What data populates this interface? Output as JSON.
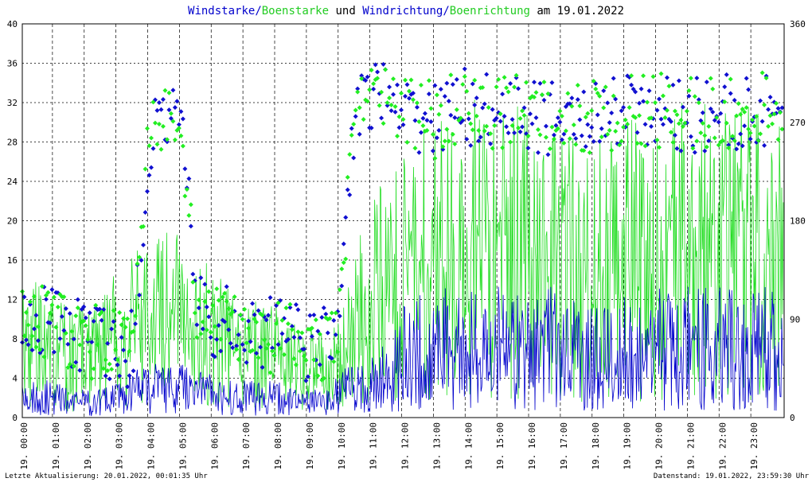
{
  "title": {
    "part1": "Windstarke",
    "sep1": "/",
    "part2": "Boenstarke",
    "mid": " und ",
    "part3": "Windrichtung",
    "sep2": "/",
    "part4": "Boenrichtung",
    "suffix": " am 19.01.2022"
  },
  "footer": {
    "left": "Letzte Aktualisierung: 20.01.2022, 00:01:35 Uhr",
    "right": "Datenstand: 19.01.2022, 23:59:30 Uhr"
  },
  "colors": {
    "wind": "#0000cc",
    "gust": "#22dd22",
    "dir": "#1010d0",
    "gustdir": "#22ee22",
    "grid": "#000000",
    "title_dark": "#000000"
  },
  "chart_data": {
    "type": "line",
    "x_ticks": [
      "19. 00:00",
      "19. 01:00",
      "19. 02:00",
      "19. 03:00",
      "19. 04:00",
      "19. 05:00",
      "19. 06:00",
      "19. 07:00",
      "19. 08:00",
      "19. 09:00",
      "19. 10:00",
      "19. 11:00",
      "19. 12:00",
      "19. 13:00",
      "19. 14:00",
      "19. 15:00",
      "19. 16:00",
      "19. 17:00",
      "19. 18:00",
      "19. 19:00",
      "19. 20:00",
      "19. 21:00",
      "19. 22:00",
      "19. 23:00"
    ],
    "y_left_ticks": [
      "0",
      "4",
      "8",
      "12",
      "16",
      "20",
      "24",
      "28",
      "32",
      "36",
      "40"
    ],
    "y_right_ticks": [
      "0",
      "90",
      "180",
      "270",
      "360"
    ],
    "ylim_left": [
      0,
      40
    ],
    "ylim_right": [
      0,
      360
    ],
    "xlim_hours": [
      0,
      24
    ],
    "grid": true,
    "series": [
      {
        "name": "Windstarke",
        "axis": "left",
        "style": "line",
        "x_hours": [
          0,
          0.5,
          1,
          1.5,
          2,
          2.5,
          3,
          3.5,
          4,
          4.5,
          5,
          5.5,
          6,
          6.5,
          7,
          7.5,
          8,
          8.5,
          9,
          9.5,
          10,
          10.5,
          11,
          11.5,
          12,
          12.5,
          13,
          13.5,
          14,
          14.5,
          15,
          15.5,
          16,
          16.5,
          17,
          17.5,
          18,
          18.5,
          19,
          19.5,
          20,
          20.5,
          21,
          21.5,
          22,
          22.5,
          23,
          23.5,
          24
        ],
        "values": [
          2,
          2,
          2,
          1.5,
          1.5,
          1.5,
          2,
          2.5,
          3,
          3,
          3,
          2.5,
          2.5,
          2,
          2,
          2,
          2,
          1.5,
          1.5,
          1.5,
          2.5,
          3,
          3.5,
          4,
          6,
          7,
          7,
          7,
          7,
          7,
          7,
          7,
          6.5,
          7,
          7,
          6,
          6,
          6,
          6.5,
          7,
          7,
          7,
          7,
          7,
          7,
          7,
          7,
          7,
          6.5
        ]
      },
      {
        "name": "Boenstarke",
        "axis": "left",
        "style": "line",
        "x_hours": [
          0,
          0.5,
          1,
          1.5,
          2,
          2.5,
          3,
          3.5,
          4,
          4.5,
          5,
          5.5,
          6,
          6.5,
          7,
          7.5,
          8,
          8.5,
          9,
          9.5,
          10,
          10.5,
          11,
          11.5,
          12,
          12.5,
          13,
          13.5,
          14,
          14.5,
          15,
          15.5,
          16,
          16.5,
          17,
          17.5,
          18,
          18.5,
          19,
          19.5,
          20,
          20.5,
          21,
          21.5,
          22,
          22.5,
          23,
          23.5,
          24
        ],
        "values": [
          7,
          7.5,
          7,
          6,
          6,
          7,
          8,
          9,
          10,
          10,
          10,
          9,
          8,
          7,
          7,
          6,
          6,
          5,
          5,
          4.5,
          6,
          9,
          12,
          13,
          15,
          16,
          16,
          16,
          17,
          17,
          16,
          17,
          16,
          16,
          16,
          15,
          15,
          15,
          16,
          16,
          17,
          17,
          17,
          17,
          16,
          17,
          17,
          17,
          16
        ]
      },
      {
        "name": "Windrichtung",
        "axis": "right",
        "style": "scatter",
        "x_hours": [
          0,
          0.5,
          1,
          1.5,
          2,
          2.5,
          3,
          3.5,
          4,
          4.5,
          5,
          5.5,
          6,
          6.5,
          7,
          7.5,
          8,
          8.5,
          9,
          9.5,
          10,
          10.5,
          11,
          11.5,
          12,
          12.5,
          13,
          13.5,
          14,
          14.5,
          15,
          15.5,
          16,
          16.5,
          17,
          17.5,
          18,
          18.5,
          19,
          19.5,
          20,
          20.5,
          21,
          21.5,
          22,
          22.5,
          23,
          23.5,
          24
        ],
        "values": [
          88,
          92,
          85,
          80,
          75,
          70,
          60,
          65,
          250,
          270,
          280,
          95,
          90,
          85,
          75,
          70,
          80,
          80,
          65,
          70,
          90,
          290,
          295,
          290,
          280,
          275,
          270,
          278,
          285,
          280,
          282,
          276,
          280,
          270,
          275,
          272,
          278,
          275,
          280,
          278,
          280,
          275,
          277,
          276,
          282,
          280,
          278,
          285,
          280
        ]
      },
      {
        "name": "Boenrichtung",
        "axis": "right",
        "style": "scatter",
        "x_hours": [
          0,
          0.5,
          1,
          1.5,
          2,
          2.5,
          3,
          3.5,
          4,
          4.5,
          5,
          5.5,
          6,
          6.5,
          7,
          7.5,
          8,
          8.5,
          9,
          9.5,
          10,
          10.5,
          11,
          11.5,
          12,
          12.5,
          13,
          13.5,
          14,
          14.5,
          15,
          15.5,
          16,
          16.5,
          17,
          17.5,
          18,
          18.5,
          19,
          19.5,
          20,
          20.5,
          21,
          21.5,
          22,
          22.5,
          23,
          23.5,
          24
        ],
        "values": [
          85,
          90,
          88,
          78,
          72,
          68,
          62,
          70,
          255,
          265,
          275,
          92,
          88,
          80,
          72,
          68,
          78,
          78,
          62,
          68,
          88,
          288,
          292,
          288,
          282,
          276,
          272,
          280,
          283,
          278,
          280,
          278,
          282,
          272,
          276,
          270,
          276,
          273,
          278,
          280,
          282,
          276,
          278,
          278,
          280,
          282,
          280,
          282,
          278
        ]
      }
    ]
  }
}
